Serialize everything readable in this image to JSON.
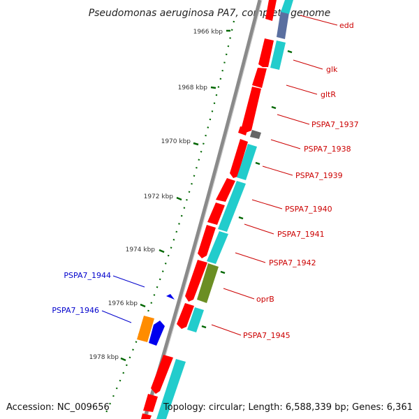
{
  "title": "Pseudomonas aeruginosa PA7, complete genome",
  "footer": {
    "accession": "Accession: NC_009656",
    "topology": "Topology: circular; Length: 6,588,339 bp; Genes: 6,361"
  },
  "ticks": [
    "1966 kbp",
    "1968 kbp",
    "1970 kbp",
    "1972 kbp",
    "1974 kbp",
    "1976 kbp",
    "1978 kbp"
  ],
  "genes_red": [
    "edd",
    "glk",
    "gltR",
    "PSPA7_1937",
    "PSPA7_1938",
    "PSPA7_1939",
    "PSPA7_1940",
    "PSPA7_1941",
    "PSPA7_1942",
    "oprB",
    "PSPA7_1945"
  ],
  "genes_blue": [
    "PSPA7_1944",
    "PSPA7_1946"
  ],
  "colors": {
    "forward_gene": "#ff0000",
    "cds": "#22cccc",
    "rna": "#6b8e23",
    "pseudo": "#5a6fa0",
    "misc": "#666666",
    "reverse_gene": "#0000ee",
    "reverse_cds": "#ff8c00",
    "tick": "#006600",
    "backbone": "#808080"
  }
}
